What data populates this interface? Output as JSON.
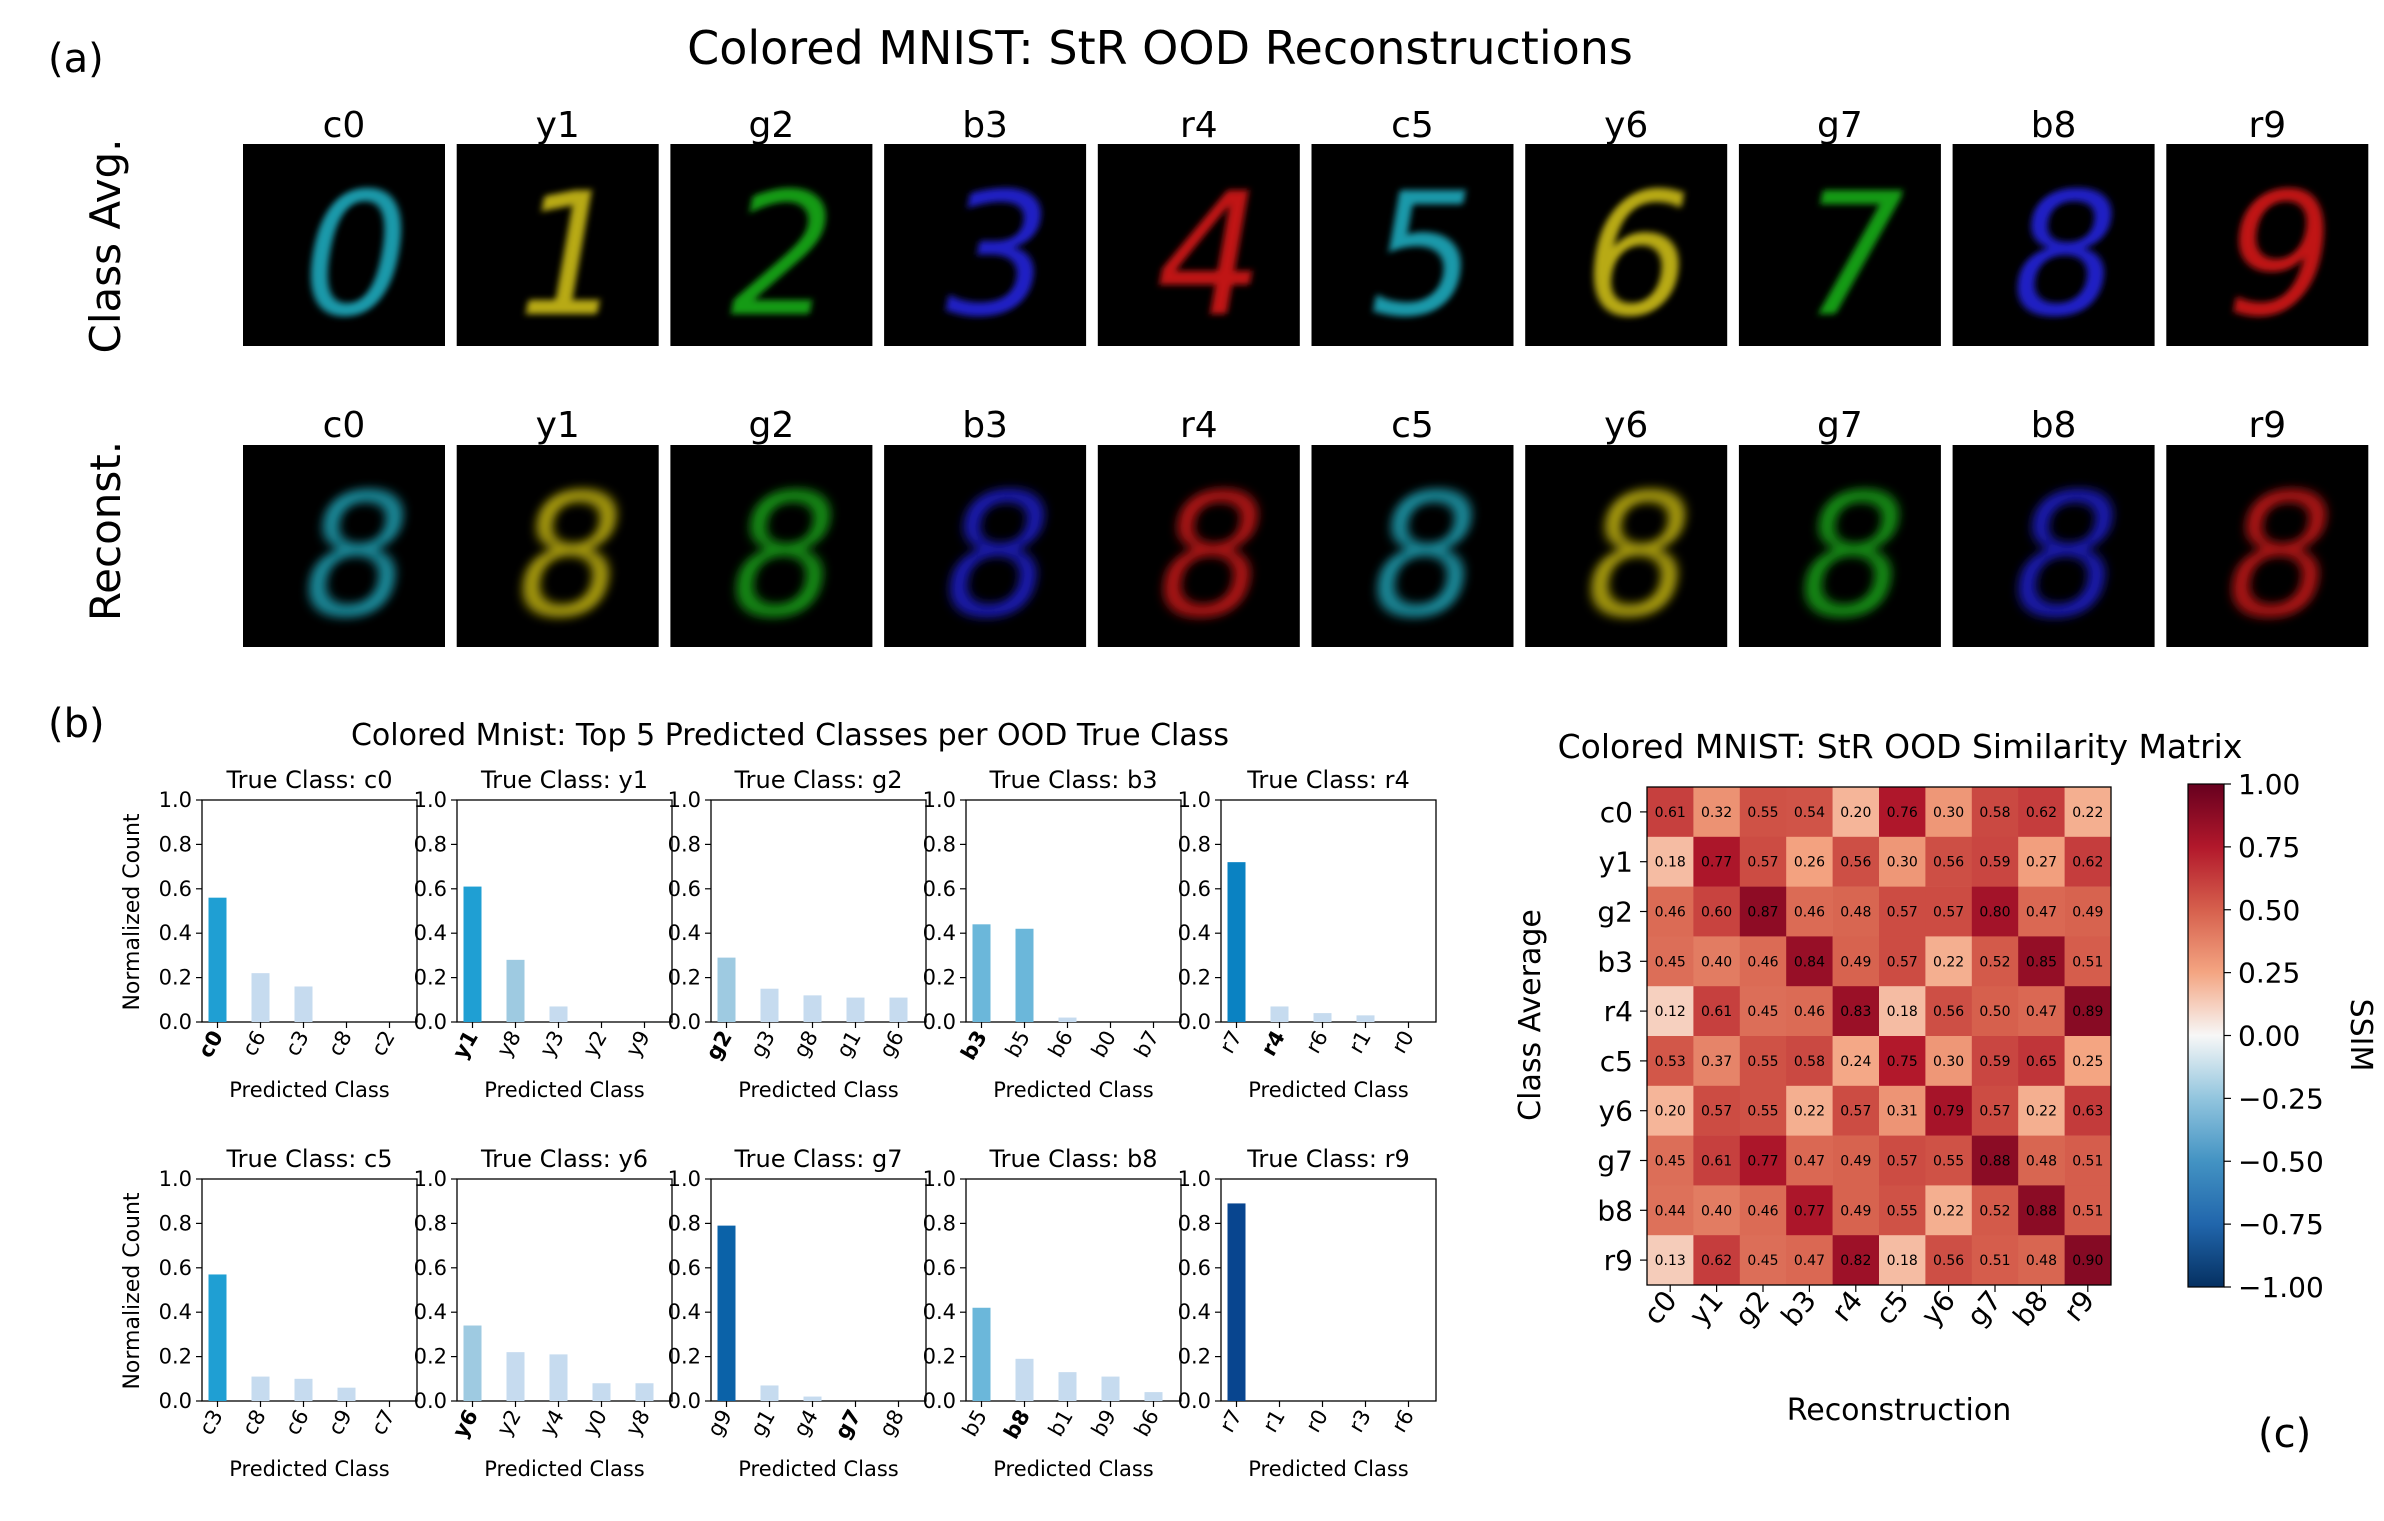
{
  "panel_labels": {
    "a": "(a)",
    "b": "(b)",
    "c": "(c)"
  },
  "panel_a": {
    "title": "Colored MNIST: StR OOD Reconstructions",
    "row_labels": [
      "Class Avg.",
      "Reconst."
    ],
    "columns": [
      "c0",
      "y1",
      "g2",
      "b3",
      "r4",
      "c5",
      "y6",
      "g7",
      "b8",
      "r9"
    ],
    "digits": [
      "0",
      "1",
      "2",
      "3",
      "4",
      "5",
      "6",
      "7",
      "8",
      "9"
    ],
    "recon_glyph": "8",
    "colors": {
      "c": "#1fb4c8",
      "y": "#d8c816",
      "g": "#19b619",
      "b": "#2424e6",
      "r": "#e21a1a"
    }
  },
  "chart_data": [
    {
      "type": "bar",
      "title": "Colored Mnist: Top 5 Predicted Classes per OOD True Class",
      "xlabel": "Predicted Class",
      "ylabel": "Normalized Count",
      "ylim": [
        0,
        1.0
      ],
      "yticks": [
        "0.0",
        "0.2",
        "0.4",
        "0.6",
        "0.8",
        "1.0"
      ],
      "subplots": [
        {
          "title": "True Class: c0",
          "categories": [
            "c0",
            "c6",
            "c3",
            "c8",
            "c2"
          ],
          "values": [
            0.56,
            0.22,
            0.16,
            0.0,
            0.0
          ],
          "bold": "c0"
        },
        {
          "title": "True Class: y1",
          "categories": [
            "y1",
            "y8",
            "y3",
            "y2",
            "y9"
          ],
          "values": [
            0.61,
            0.28,
            0.07,
            0.0,
            0.0
          ],
          "bold": "y1"
        },
        {
          "title": "True Class: g2",
          "categories": [
            "g2",
            "g3",
            "g8",
            "g1",
            "g6"
          ],
          "values": [
            0.29,
            0.15,
            0.12,
            0.11,
            0.11
          ],
          "bold": "g2"
        },
        {
          "title": "True Class: b3",
          "categories": [
            "b3",
            "b5",
            "b6",
            "b0",
            "b7"
          ],
          "values": [
            0.44,
            0.42,
            0.02,
            0.0,
            0.0
          ],
          "bold": "b3"
        },
        {
          "title": "True Class: r4",
          "categories": [
            "r7",
            "r4",
            "r6",
            "r1",
            "r0"
          ],
          "values": [
            0.72,
            0.07,
            0.04,
            0.03,
            0.0
          ],
          "bold": "r4"
        },
        {
          "title": "True Class: c5",
          "categories": [
            "c3",
            "c8",
            "c6",
            "c9",
            "c7"
          ],
          "values": [
            0.57,
            0.11,
            0.1,
            0.06,
            0.0
          ],
          "bold": ""
        },
        {
          "title": "True Class: y6",
          "categories": [
            "y6",
            "y2",
            "y4",
            "y0",
            "y8"
          ],
          "values": [
            0.34,
            0.22,
            0.21,
            0.08,
            0.08
          ],
          "bold": "y6"
        },
        {
          "title": "True Class: g7",
          "categories": [
            "g9",
            "g1",
            "g4",
            "g7",
            "g8"
          ],
          "values": [
            0.79,
            0.07,
            0.02,
            0.0,
            0.0
          ],
          "bold": "g7"
        },
        {
          "title": "True Class: b8",
          "categories": [
            "b5",
            "b8",
            "b1",
            "b9",
            "b6"
          ],
          "values": [
            0.42,
            0.19,
            0.13,
            0.11,
            0.04
          ],
          "bold": "b8"
        },
        {
          "title": "True Class: r9",
          "categories": [
            "r7",
            "r1",
            "r0",
            "r3",
            "r6"
          ],
          "values": [
            0.89,
            0.0,
            0.0,
            0.0,
            0.0
          ],
          "bold": ""
        }
      ]
    },
    {
      "type": "heatmap",
      "title": "Colored MNIST: StR OOD Similarity Matrix",
      "xlabel": "Reconstruction",
      "ylabel": "Class Average",
      "x": [
        "c0",
        "y1",
        "g2",
        "b3",
        "r4",
        "c5",
        "y6",
        "g7",
        "b8",
        "r9"
      ],
      "y": [
        "c0",
        "y1",
        "g2",
        "b3",
        "r4",
        "c5",
        "y6",
        "g7",
        "b8",
        "r9"
      ],
      "values": [
        [
          0.61,
          0.32,
          0.55,
          0.54,
          0.2,
          0.76,
          0.3,
          0.58,
          0.62,
          0.22
        ],
        [
          0.18,
          0.77,
          0.57,
          0.26,
          0.56,
          0.3,
          0.56,
          0.59,
          0.27,
          0.62
        ],
        [
          0.46,
          0.6,
          0.87,
          0.46,
          0.48,
          0.57,
          0.57,
          0.8,
          0.47,
          0.49
        ],
        [
          0.45,
          0.4,
          0.46,
          0.84,
          0.49,
          0.57,
          0.22,
          0.52,
          0.85,
          0.51
        ],
        [
          0.12,
          0.61,
          0.45,
          0.46,
          0.83,
          0.18,
          0.56,
          0.5,
          0.47,
          0.89
        ],
        [
          0.53,
          0.37,
          0.55,
          0.58,
          0.24,
          0.75,
          0.3,
          0.59,
          0.65,
          0.25
        ],
        [
          0.2,
          0.57,
          0.55,
          0.22,
          0.57,
          0.31,
          0.79,
          0.57,
          0.22,
          0.63
        ],
        [
          0.45,
          0.61,
          0.77,
          0.47,
          0.49,
          0.57,
          0.55,
          0.88,
          0.48,
          0.51
        ],
        [
          0.44,
          0.4,
          0.46,
          0.77,
          0.49,
          0.55,
          0.22,
          0.52,
          0.88,
          0.51
        ],
        [
          0.13,
          0.62,
          0.45,
          0.47,
          0.82,
          0.18,
          0.56,
          0.51,
          0.48,
          0.9
        ]
      ],
      "colorbar": {
        "label": "SSIM",
        "range": [
          -1.0,
          1.0
        ],
        "ticks": [
          "1.00",
          "0.75",
          "0.50",
          "0.25",
          "0.00",
          "−0.25",
          "−0.50",
          "−0.75",
          "−1.00"
        ]
      }
    }
  ]
}
